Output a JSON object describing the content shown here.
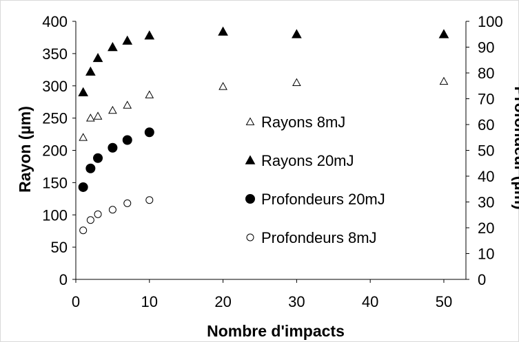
{
  "chart_data": {
    "type": "scatter",
    "xlabel": "Nombre d'impacts",
    "ylabel": "Rayon (µm)",
    "y2label": "Profondeur (µm)",
    "xlim": [
      0,
      53
    ],
    "xticks": [
      0,
      10,
      20,
      30,
      40,
      50
    ],
    "ylim": [
      0,
      400
    ],
    "yticks": [
      0,
      50,
      100,
      150,
      200,
      250,
      300,
      350,
      400
    ],
    "y2lim": [
      0,
      100
    ],
    "y2ticks": [
      0,
      10,
      20,
      30,
      40,
      50,
      60,
      70,
      80,
      90,
      100
    ],
    "grid": false,
    "legend_position": "center-right",
    "series": [
      {
        "name": "Rayons 8mJ",
        "marker": "triangle-open",
        "axis": "left",
        "x": [
          1,
          2,
          3,
          5,
          7,
          10,
          20,
          30,
          50
        ],
        "y": [
          220,
          250,
          253,
          262,
          270,
          286,
          299,
          305,
          307
        ]
      },
      {
        "name": "Rayons 20mJ",
        "marker": "triangle-filled",
        "axis": "left",
        "x": [
          1,
          2,
          3,
          5,
          7,
          10,
          20,
          30,
          50
        ],
        "y": [
          290,
          322,
          343,
          360,
          370,
          378,
          384,
          380,
          380
        ]
      },
      {
        "name": "Profondeurs 20mJ",
        "marker": "circle-filled",
        "axis": "right",
        "x": [
          1,
          2,
          3,
          5,
          7,
          10
        ],
        "y": [
          35.75,
          43,
          47,
          51,
          54,
          57
        ]
      },
      {
        "name": "Profondeurs 8mJ",
        "marker": "circle-open",
        "axis": "right",
        "x": [
          1,
          2,
          3,
          5,
          7,
          10
        ],
        "y": [
          19,
          23,
          25.25,
          27,
          29.5,
          30.75
        ]
      }
    ]
  }
}
